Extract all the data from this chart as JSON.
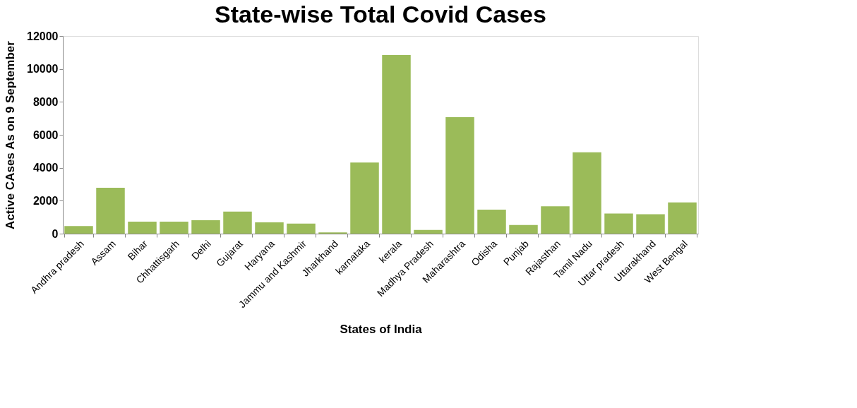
{
  "chart_data": {
    "type": "bar",
    "title": "State-wise Total Covid Cases",
    "xlabel": "States of India",
    "ylabel": "Active CAses As on 9 September",
    "categories": [
      "Andhra pradesh",
      "Assam",
      "Bihar",
      "Chhattisgarh",
      "Delhi",
      "Gujarat",
      "Haryana",
      "Jammu and Kashmir",
      "Jharkhand",
      "karnataka",
      "kerala",
      "Madhya Pradesh",
      "Maharashtra",
      "Odisha",
      "Punjab",
      "Rajasthan",
      "Tamil Nadu",
      "Uttar pradesh",
      "Uttarakhand",
      "West Bengal"
    ],
    "values": [
      460,
      2790,
      730,
      730,
      810,
      1340,
      690,
      610,
      80,
      4320,
      10840,
      220,
      7070,
      1460,
      530,
      1660,
      4940,
      1220,
      1180,
      1900
    ],
    "color": "#9bbb59",
    "ylim": [
      0,
      12000
    ],
    "yticks": [
      0,
      2000,
      4000,
      6000,
      8000,
      10000,
      12000
    ],
    "grid": false
  }
}
